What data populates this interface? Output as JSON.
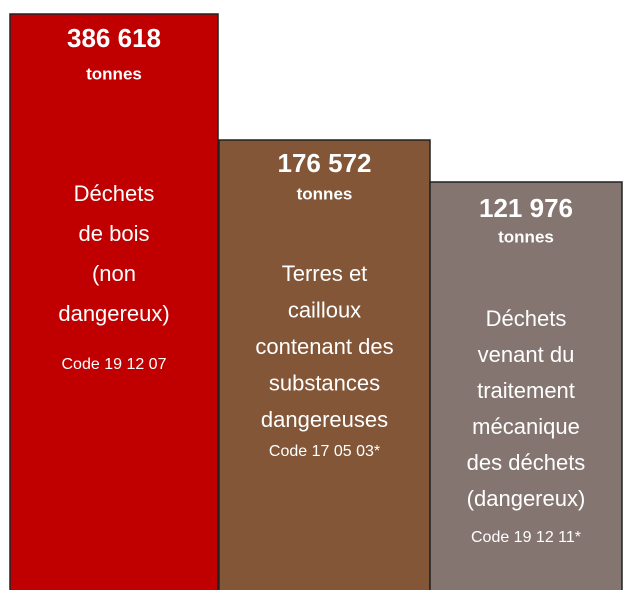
{
  "blocks": [
    {
      "value": "386 618",
      "unit": "tonnes",
      "label_lines": [
        "Déchets",
        "de bois",
        "(non",
        "dangereux)"
      ],
      "code": "Code 19 12 07"
    },
    {
      "value": "176 572",
      "unit": "tonnes",
      "label_lines": [
        "Terres et",
        "cailloux",
        "contenant des",
        "substances",
        "dangereuses"
      ],
      "code": "Code 17 05 03*"
    },
    {
      "value": "121 976",
      "unit": "tonnes",
      "label_lines": [
        "Déchets",
        "venant du",
        "traitement",
        "mécanique",
        "des déchets",
        "(dangereux)"
      ],
      "code": "Code 19 12 11*"
    }
  ]
}
